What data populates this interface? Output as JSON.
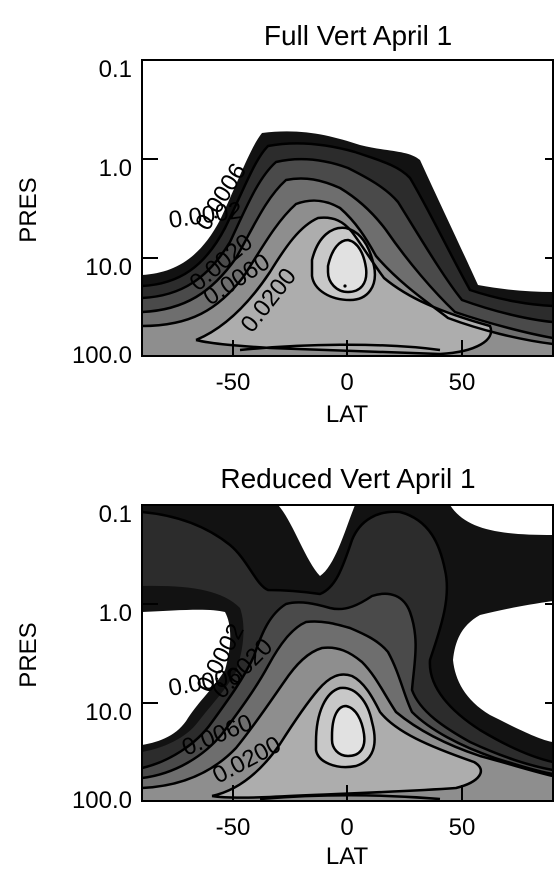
{
  "chart_data": [
    {
      "type": "contour",
      "title": "Full Vert April 1",
      "xlabel": "LAT",
      "ylabel": "PRES",
      "x_ticks": [
        "-50",
        "0",
        "50"
      ],
      "y_ticks": [
        "0.1",
        "1.0",
        "10.0",
        "100.0"
      ],
      "xlim": [
        -90,
        90
      ],
      "ylim": [
        100.0,
        0.1
      ],
      "y_scale": "log",
      "contour_labels": [
        "0.0002",
        "0.0006",
        "0.0020",
        "0.0060",
        "0.0200"
      ],
      "peak": {
        "lat": -2,
        "pres": 11
      }
    },
    {
      "type": "contour",
      "title": "Reduced Vert April 1",
      "xlabel": "LAT",
      "ylabel": "PRES",
      "x_ticks": [
        "-50",
        "0",
        "50"
      ],
      "y_ticks": [
        "0.1",
        "1.0",
        "10.0",
        "100.0"
      ],
      "xlim": [
        -90,
        90
      ],
      "ylim": [
        100.0,
        0.1
      ],
      "y_scale": "log",
      "contour_labels": [
        "0.0006",
        "0.0002",
        "0.0020",
        "0.0060",
        "0.0200"
      ],
      "peak": {
        "lat": -2,
        "pres": 12
      }
    }
  ]
}
